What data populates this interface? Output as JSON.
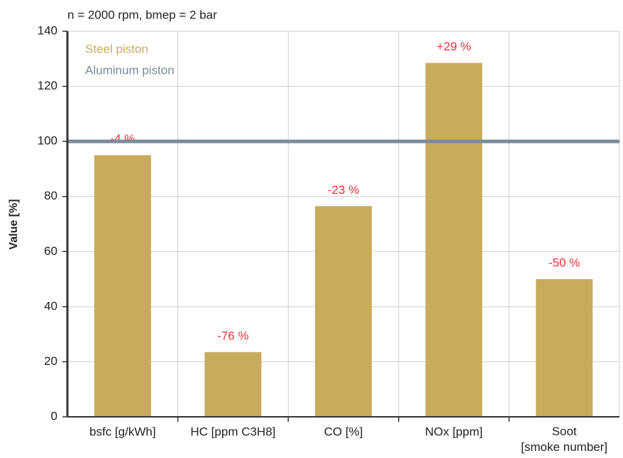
{
  "chart_data": {
    "type": "bar",
    "subtitle": "n = 2000 rpm, bmep = 2 bar",
    "ylabel": "Value [%]",
    "categories": [
      "bsfc [g/kWh]",
      "HC [ppm C3H8]",
      "CO [%]",
      "NOx [ppm]",
      "Soot\n[smoke number]"
    ],
    "series": [
      {
        "name": "Steel piston",
        "color": "#c9ab5e",
        "values": [
          95,
          23.5,
          76.5,
          128.5,
          50
        ]
      }
    ],
    "reference": {
      "name": "Aluminum piston",
      "color": "#7b8b97",
      "value": 100
    },
    "annotations": [
      "-4 %",
      "-76 %",
      "-23 %",
      "+29 %",
      "-50 %"
    ],
    "annotation_color": "#e8303a",
    "ylim": [
      0,
      140
    ],
    "yticks": [
      0,
      20,
      40,
      60,
      80,
      100,
      120,
      140
    ],
    "grid": true
  }
}
